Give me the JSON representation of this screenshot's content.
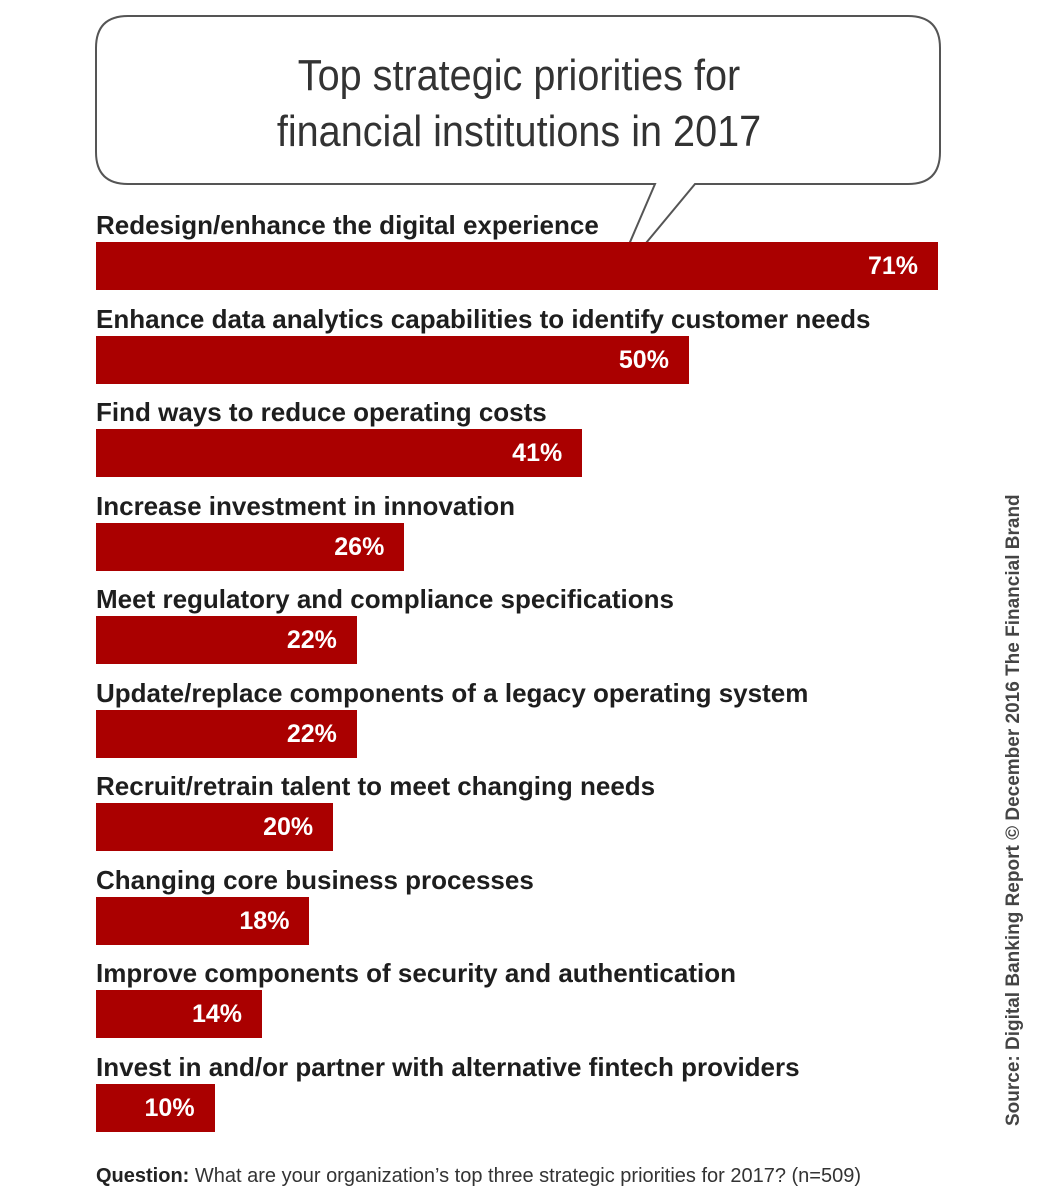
{
  "chart_data": {
    "type": "bar",
    "orientation": "horizontal",
    "title": "Top strategic priorities for financial institutions in 2017",
    "title_lines": [
      "Top strategic priorities for",
      "financial institutions in 2017"
    ],
    "categories": [
      "Redesign/enhance the digital experience",
      "Enhance data analytics capabilities to identify customer needs",
      "Find ways to reduce operating costs",
      "Increase investment in innovation",
      "Meet regulatory and compliance specifications",
      "Update/replace components of a legacy operating system",
      "Recruit/retrain talent to meet changing needs",
      "Changing core business processes",
      "Improve components of security and authentication",
      "Invest in and/or partner with alternative fintech providers"
    ],
    "values": [
      71,
      50,
      41,
      26,
      22,
      22,
      20,
      18,
      14,
      10
    ],
    "value_labels": [
      "71%",
      "50%",
      "41%",
      "26%",
      "22%",
      "22%",
      "20%",
      "18%",
      "14%",
      "10%"
    ],
    "unit": "%",
    "xlabel": "",
    "ylabel": "",
    "grid": false,
    "legend": "none",
    "bar_color": "#aa0000"
  },
  "source": "Source: Digital Banking Report © December 2016 The Financial Brand",
  "question": {
    "label": "Question:",
    "text": " What are your organization’s top three strategic priorities for 2017? (n=509)"
  }
}
